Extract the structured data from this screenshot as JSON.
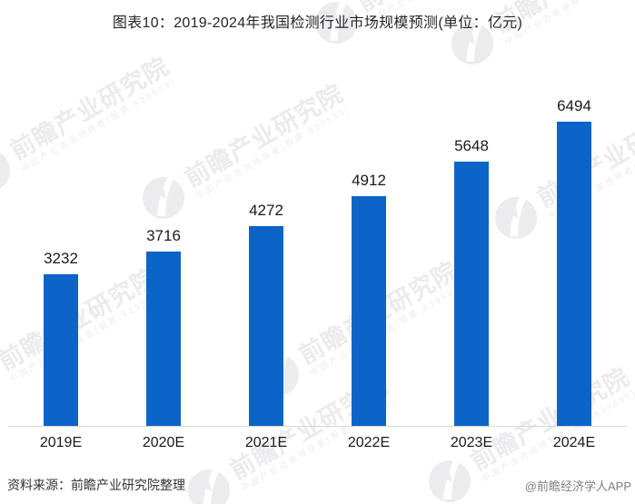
{
  "title": "图表10：2019-2024年我国检测行业市场规模预测(单位：亿元)",
  "chart_data": {
    "type": "bar",
    "title": "图表10：2019-2024年我国检测行业市场规模预测",
    "unit_label": "单位：亿元",
    "categories": [
      "2019E",
      "2020E",
      "2021E",
      "2022E",
      "2023E",
      "2024E"
    ],
    "values": [
      3232,
      3716,
      4272,
      4912,
      5648,
      6494
    ],
    "value_labels_shown": true,
    "xlabel": "",
    "ylabel": "",
    "ylim": [
      0,
      6900
    ],
    "grid": false,
    "legend": "none",
    "bar_color": "#0d64c8"
  },
  "watermark": {
    "logo_icon": "qianzhan-swallow-logo",
    "brand_text": "前瞻产业研究院",
    "brand_subtext": "中国产业咨询领导者(股票:839599)"
  },
  "footer": {
    "source": "资料来源：前瞻产业研究院整理",
    "credit": "@前瞻经济学人APP"
  },
  "colors": {
    "bar": "#0d64c8",
    "axis_line": "#d9d9d9",
    "title_text": "#262626",
    "label_text": "#1a1a1a",
    "source_text": "#333333",
    "credit_text": "#7f7f7f",
    "watermark_text": "#ebebee",
    "background": "#ffffff"
  }
}
